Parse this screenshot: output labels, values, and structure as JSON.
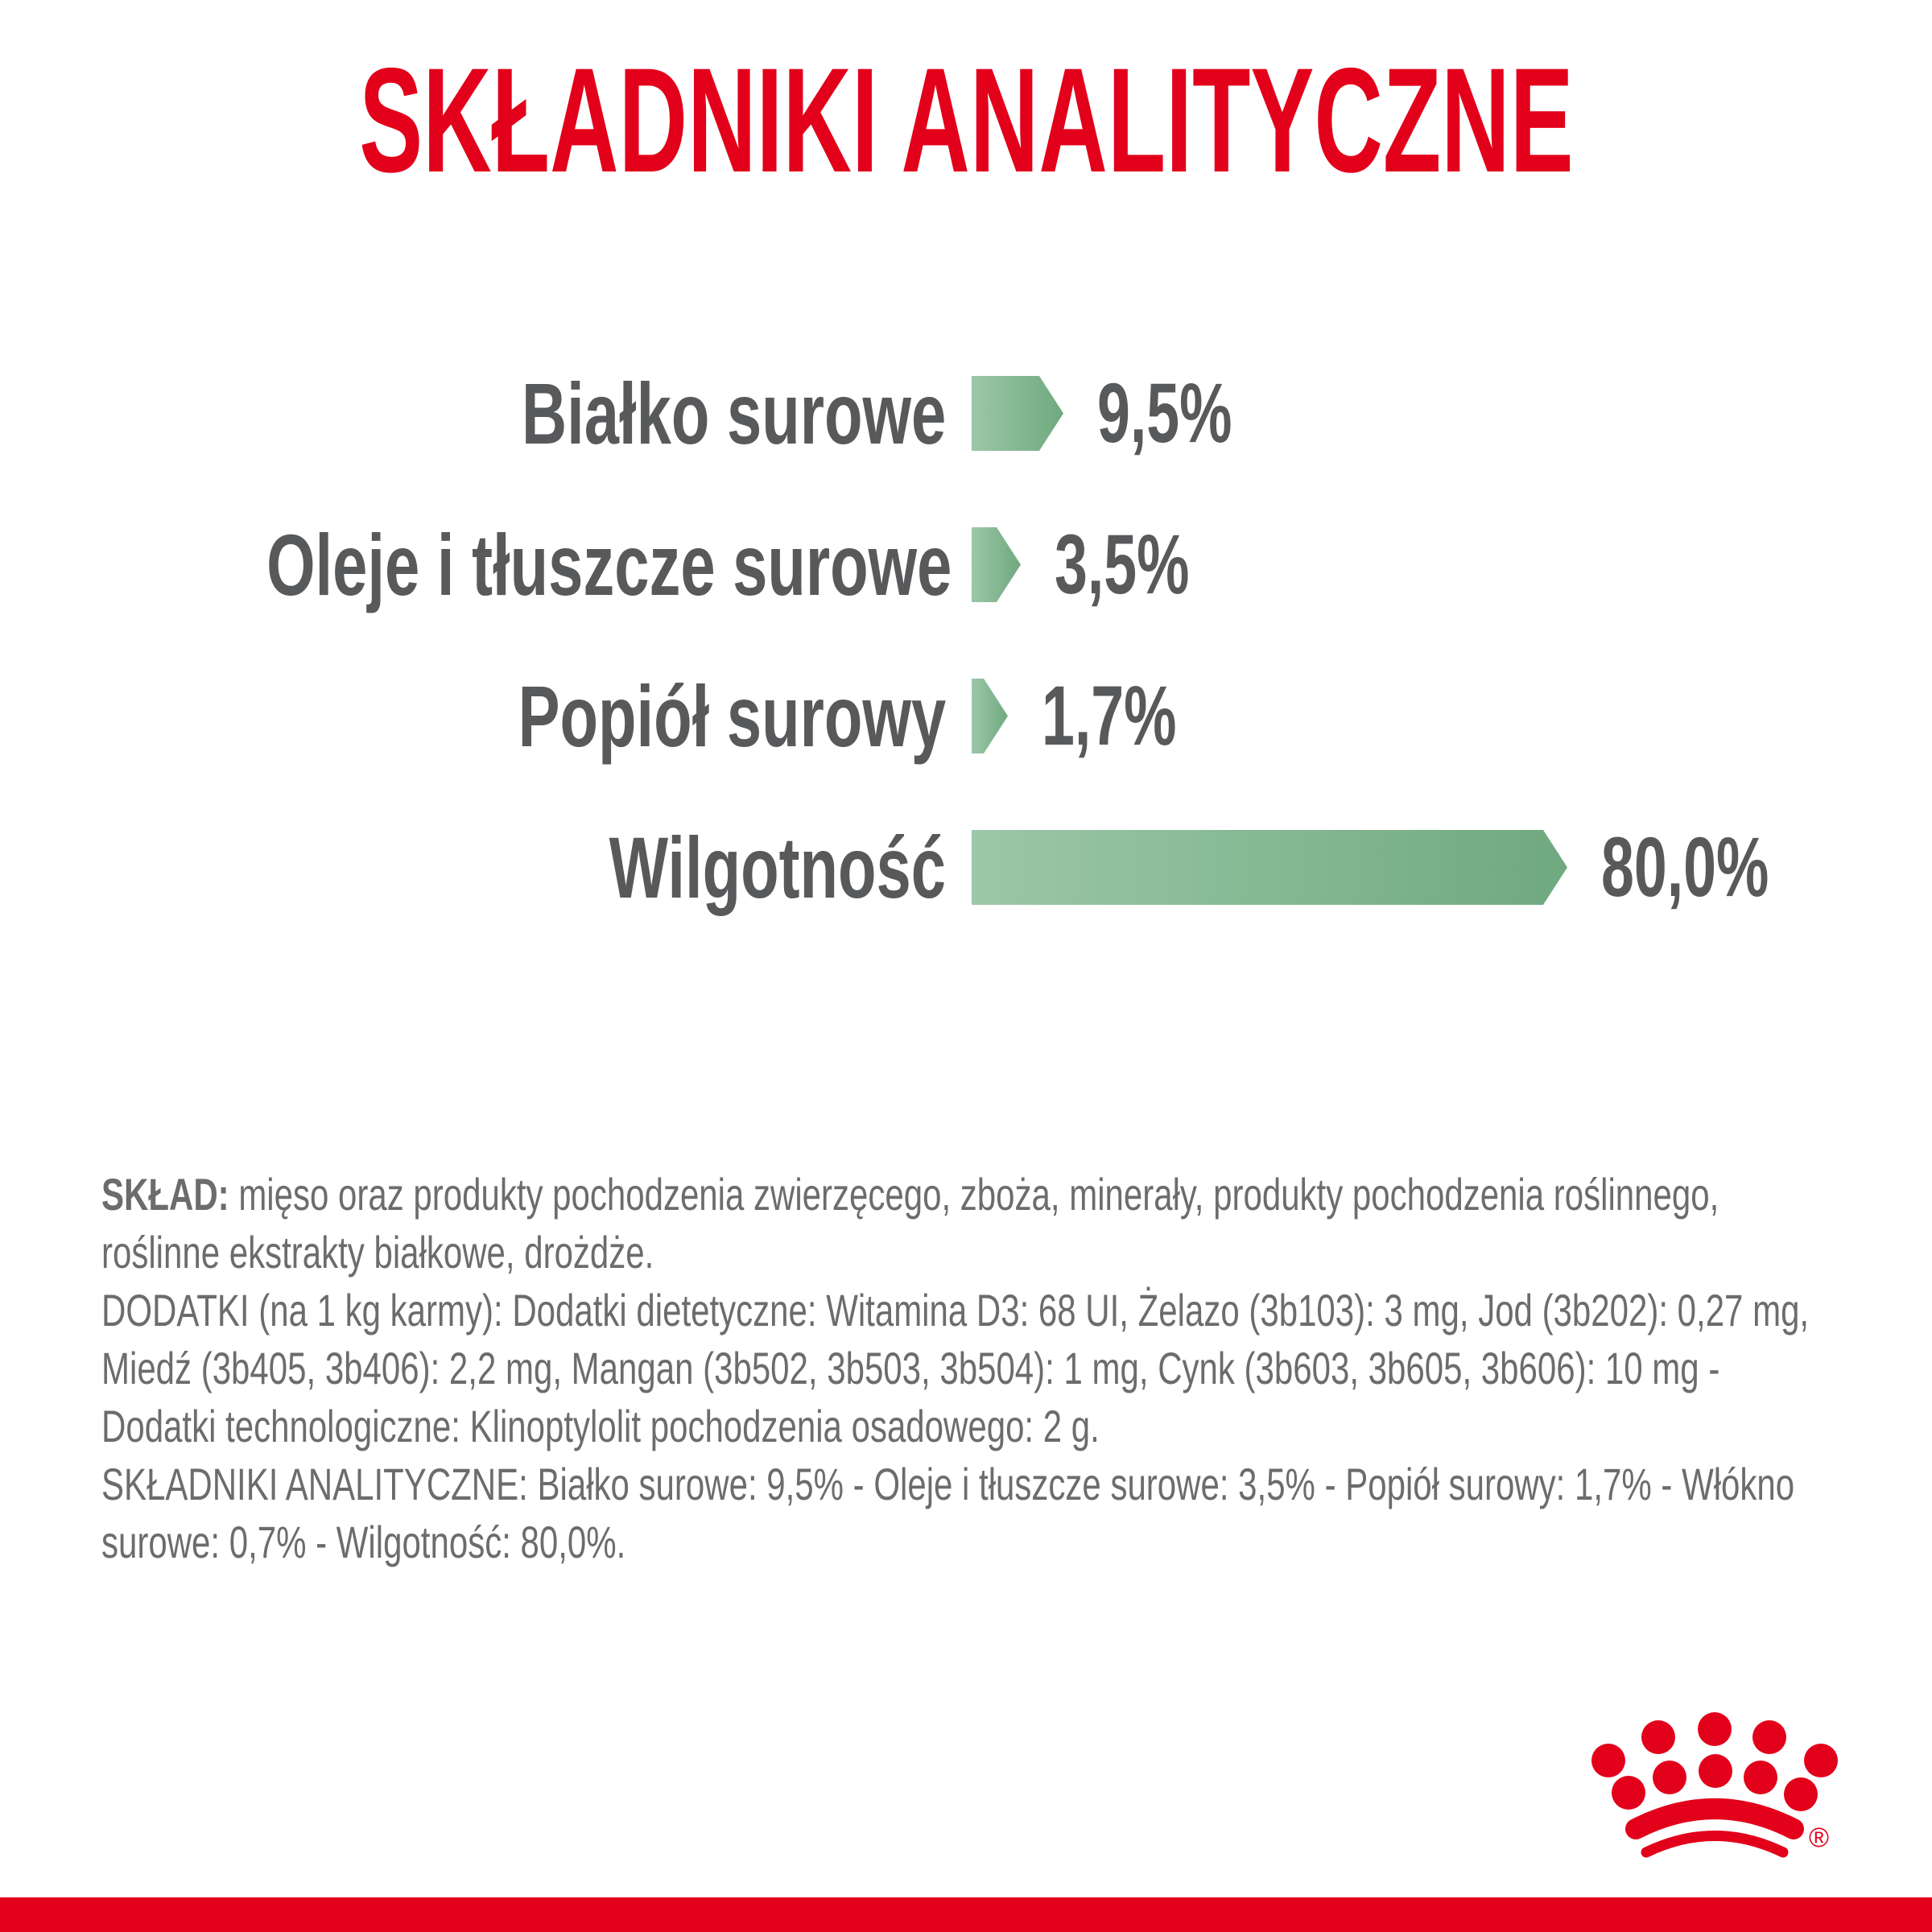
{
  "page": {
    "background": "#ffffff"
  },
  "title": {
    "text": "SKŁADNIKI ANALITYCZNE",
    "color": "#e2001a"
  },
  "chart_data": {
    "type": "bar",
    "orientation": "horizontal",
    "title": "SKŁADNIKI ANALITYCZNE",
    "unit": "%",
    "categories": [
      "Białko surowe",
      "Oleje i tłuszcze surowe",
      "Popiół surowy",
      "Wilgotność"
    ],
    "values": [
      9.5,
      3.5,
      1.7,
      80.0
    ],
    "value_labels": [
      "9,5%",
      "3,5%",
      "1,7%",
      "80,0%"
    ],
    "axis_range": [
      0,
      80
    ],
    "grid": false,
    "legend": false,
    "bar_gradient_start": "#9cc7a8",
    "bar_gradient_end": "#6fa97f",
    "text_color": "#58595b"
  },
  "details": {
    "text_color": "#6b6c6e",
    "lines": [
      {
        "bold": "SKŁAD:",
        "text": " mięso oraz produkty pochodzenia zwierzęcego, zboża, minerały, produkty pochodzenia roślinnego,"
      },
      {
        "bold": "",
        "text": "roślinne ekstrakty białkowe, drożdże."
      },
      {
        "bold": "",
        "text": "DODATKI (na 1 kg karmy): Dodatki dietetyczne: Witamina D3: 68 UI, Żelazo (3b103): 3 mg, Jod (3b202): 0,27 mg,"
      },
      {
        "bold": "",
        "text": "Miedź (3b405, 3b406): 2,2 mg, Mangan (3b502, 3b503, 3b504): 1 mg, Cynk (3b603, 3b605, 3b606): 10 mg -"
      },
      {
        "bold": "",
        "text": "Dodatki technologiczne: Klinoptylolit pochodzenia osadowego: 2 g."
      },
      {
        "bold": "",
        "text": "SKŁADNIKI ANALITYCZNE: Białko surowe: 9,5% - Oleje i tłuszcze surowe: 3,5% - Popiół surowy: 1,7% - Włókno"
      },
      {
        "bold": "",
        "text": "surowe: 0,7% - Wilgotność: 80,0%."
      }
    ]
  },
  "logo": {
    "name": "Royal Canin crown",
    "registered_mark": "®",
    "color": "#e2001a"
  },
  "footer_band": {
    "color": "#e2001a"
  }
}
